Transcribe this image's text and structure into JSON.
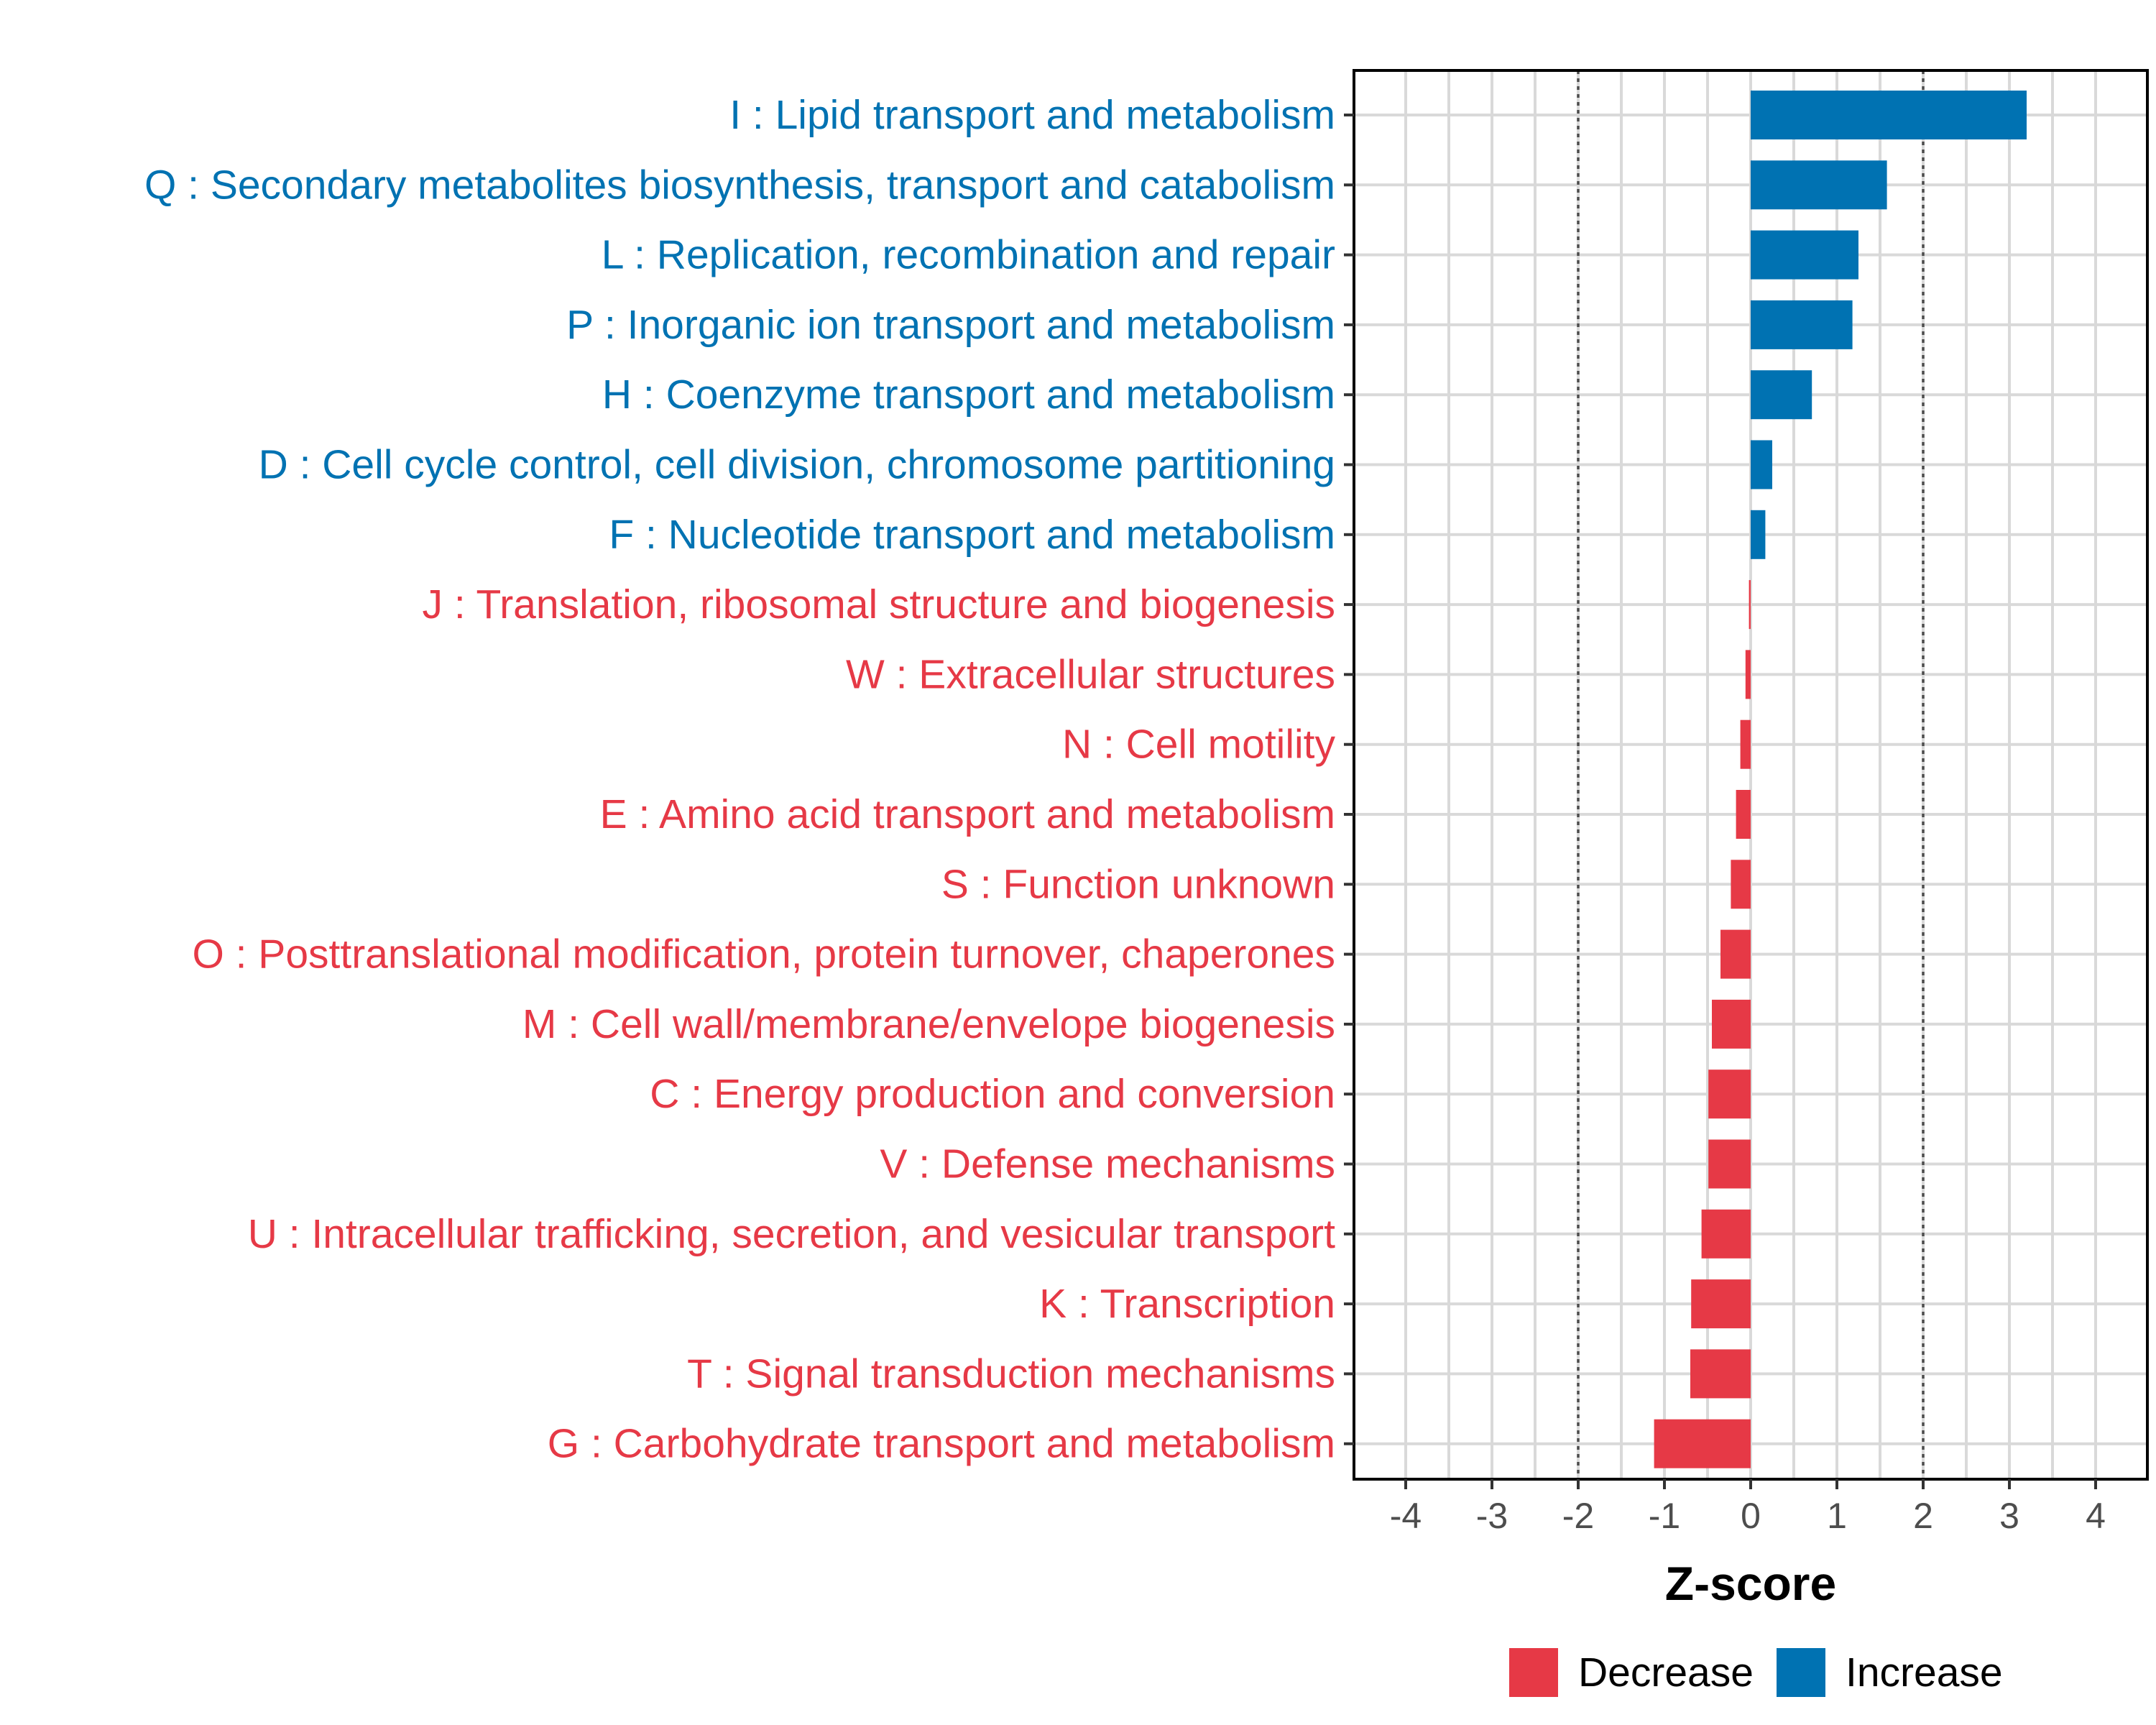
{
  "chart_data": {
    "type": "bar",
    "orientation": "horizontal",
    "xlabel": "Z-score",
    "xlim": [
      -4.6,
      4.6
    ],
    "xticks": [
      -4,
      -3,
      -2,
      -1,
      0,
      1,
      2,
      3,
      4
    ],
    "reference_lines": [
      -2,
      2
    ],
    "colors": {
      "Decrease": "#e63946",
      "Increase": "#0072b2"
    },
    "legend": {
      "position": "bottom",
      "entries": [
        {
          "label": "Decrease",
          "color": "#e63946"
        },
        {
          "label": "Increase",
          "color": "#0072b2"
        }
      ]
    },
    "categories": [
      {
        "label": "I : Lipid transport and metabolism",
        "value": 3.2,
        "direction": "Increase"
      },
      {
        "label": "Q : Secondary metabolites biosynthesis, transport and catabolism",
        "value": 1.58,
        "direction": "Increase"
      },
      {
        "label": "L : Replication, recombination and repair",
        "value": 1.25,
        "direction": "Increase"
      },
      {
        "label": "P : Inorganic ion transport and metabolism",
        "value": 1.18,
        "direction": "Increase"
      },
      {
        "label": "H : Coenzyme transport and metabolism",
        "value": 0.71,
        "direction": "Increase"
      },
      {
        "label": "D : Cell cycle control, cell division, chromosome partitioning",
        "value": 0.25,
        "direction": "Increase"
      },
      {
        "label": "F : Nucleotide transport and metabolism",
        "value": 0.17,
        "direction": "Increase"
      },
      {
        "label": "J : Translation, ribosomal structure and biogenesis",
        "value": -0.02,
        "direction": "Decrease"
      },
      {
        "label": "W : Extracellular structures",
        "value": -0.06,
        "direction": "Decrease"
      },
      {
        "label": "N : Cell motility",
        "value": -0.12,
        "direction": "Decrease"
      },
      {
        "label": "E : Amino acid transport and metabolism",
        "value": -0.17,
        "direction": "Decrease"
      },
      {
        "label": "S : Function unknown",
        "value": -0.23,
        "direction": "Decrease"
      },
      {
        "label": "O : Posttranslational modification, protein turnover, chaperones",
        "value": -0.35,
        "direction": "Decrease"
      },
      {
        "label": "M : Cell wall/membrane/envelope biogenesis",
        "value": -0.45,
        "direction": "Decrease"
      },
      {
        "label": "C : Energy production and conversion",
        "value": -0.49,
        "direction": "Decrease"
      },
      {
        "label": "V : Defense mechanisms",
        "value": -0.49,
        "direction": "Decrease"
      },
      {
        "label": "U : Intracellular trafficking, secretion, and vesicular transport",
        "value": -0.57,
        "direction": "Decrease"
      },
      {
        "label": "K : Transcription",
        "value": -0.69,
        "direction": "Decrease"
      },
      {
        "label": "T : Signal transduction mechanisms",
        "value": -0.7,
        "direction": "Decrease"
      },
      {
        "label": "G : Carbohydrate transport and metabolism",
        "value": -1.12,
        "direction": "Decrease"
      }
    ]
  }
}
